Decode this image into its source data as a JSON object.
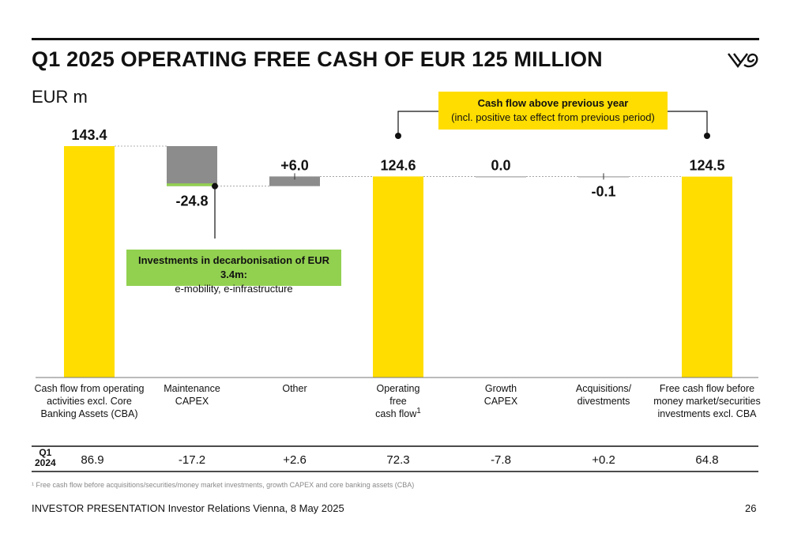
{
  "title": "Q1 2025 OPERATING FREE CASH OF EUR 125 MILLION",
  "unit": "EUR m",
  "callouts": {
    "cash_flow_title": "Cash flow above previous year",
    "cash_flow_sub": "(incl. positive tax effect from previous period)",
    "decarb_title": "Investments in decarbonisation of EUR 3.4m:",
    "decarb_sub": "e-mobility, e-infrastructure"
  },
  "colors": {
    "yellow": "#FFDD00",
    "gray": "#8C8C8C",
    "green": "#92D050"
  },
  "chart_data": {
    "type": "bar",
    "subtype": "waterfall",
    "categories": [
      [
        "Cash flow from operating",
        "activities excl. Core",
        "Banking Assets (CBA)"
      ],
      [
        "Maintenance",
        "CAPEX"
      ],
      [
        "Other"
      ],
      [
        "Operating",
        "free",
        "cash flow"
      ],
      [
        "Growth",
        "CAPEX"
      ],
      [
        "Acquisitions/",
        "divestments"
      ],
      [
        "Free cash flow before",
        "money market/securities",
        "investments excl. CBA"
      ]
    ],
    "values": [
      143.4,
      -24.8,
      6.0,
      124.6,
      0.0,
      -0.1,
      124.5
    ],
    "kinds": [
      "total",
      "delta",
      "delta",
      "total",
      "delta",
      "delta",
      "total"
    ],
    "value_labels": [
      "143.4",
      "-24.8",
      "+6.0",
      "124.6",
      "0.0",
      "-0.1",
      "124.5"
    ],
    "sub_segments": [
      {
        "category_index": 1,
        "value": -3.4,
        "color": "#92D050",
        "label": "Investments in decarbonisation"
      }
    ],
    "category_footnote": {
      "category_index": 3,
      "marker": "1"
    },
    "ylim": [
      0,
      160
    ],
    "prior_year": {
      "label": [
        "Q1",
        "2024"
      ],
      "values": [
        "86.9",
        "-17.2",
        "+2.6",
        "72.3",
        "-7.8",
        "+0.2",
        "64.8"
      ]
    }
  },
  "footnote": "¹ Free cash flow before acquisitions/securities/money market investments, growth CAPEX and core banking assets (CBA)",
  "footer": "INVESTOR PRESENTATION Investor Relations Vienna, 8 May 2025",
  "page_number": "26"
}
